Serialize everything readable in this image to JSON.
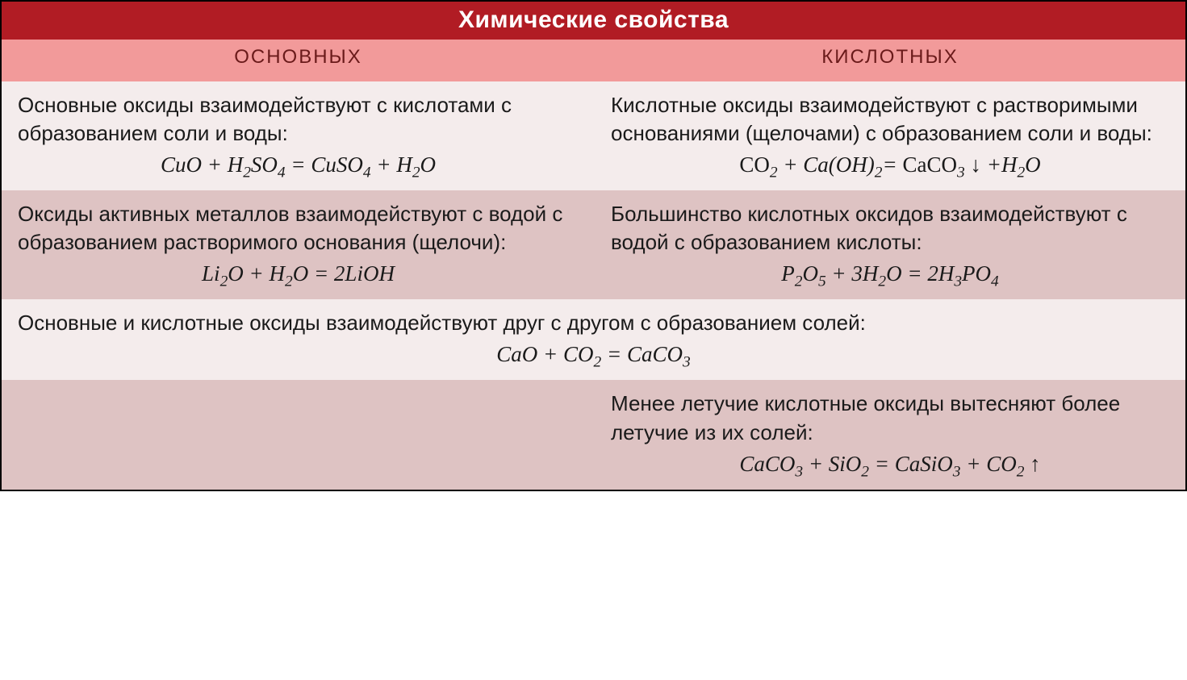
{
  "colors": {
    "title_bg": "#b11c24",
    "title_fg": "#ffffff",
    "subhead_bg": "#f29a9a",
    "subhead_fg": "#6a1a1a",
    "row_light": "#f4ecec",
    "row_dark": "#dec3c3",
    "text": "#1a1a1a"
  },
  "fonts": {
    "title_size": 30,
    "subhead_size": 24,
    "body_size": 26,
    "eq_size": 27
  },
  "layout": {
    "col1_width": 735,
    "col2_width": 732,
    "title_height": 48,
    "subhead_height": 52
  },
  "title": "Химические свойства",
  "subheads": {
    "left": "ОСНОВНЫХ",
    "right": "КИСЛОТНЫХ"
  },
  "rows": [
    {
      "bg": "light",
      "left": {
        "desc": "Основные оксиды взаимодействуют с кислотами с образованием соли и воды:",
        "eq_html": "CuO + H<sub>2</sub>SO<sub>4</sub> = CuSO<sub>4</sub> +  H<sub>2</sub>O"
      },
      "right": {
        "desc": "Кислотные оксиды взаимодействуют с растворимыми основаниями (щелочами) с образованием соли и воды:",
        "eq_html": "<span class=\"rm\">CO</span><sub>2</sub> + Ca(OH)<sub>2</sub>= <span class=\"rm\">CaCO</span><sub>3</sub> ↓ +H<sub>2</sub>O"
      }
    },
    {
      "bg": "dark",
      "left": {
        "desc": "Оксиды активных металлов взаимодействуют с водой с образованием растворимого основания (щелочи):",
        "eq_html": "Li<sub>2</sub>O + H<sub>2</sub>O = 2LiOH"
      },
      "right": {
        "desc": "Большинство кислотных оксидов взаимодействуют с водой с образованием кислоты:",
        "eq_html": "P<sub>2</sub>O<sub>5</sub> + 3H<sub>2</sub>O = 2H<sub>3</sub>PO<sub>4</sub>"
      }
    },
    {
      "bg": "light",
      "span": true,
      "full": {
        "desc": "Основные и кислотные оксиды взаимодействуют друг с другом с образованием солей:",
        "eq_html": "CaO + CO<sub>2</sub> = CaCO<sub>3</sub>"
      }
    },
    {
      "bg": "dark",
      "left": {
        "desc": "",
        "eq_html": ""
      },
      "right": {
        "desc": "Менее летучие кислотные оксиды вытесняют более летучие из их солей:",
        "eq_html": "CaCO<sub>3</sub> + SiO<sub>2</sub> = CaSiO<sub>3</sub> + CO<sub>2</sub> ↑"
      }
    }
  ]
}
